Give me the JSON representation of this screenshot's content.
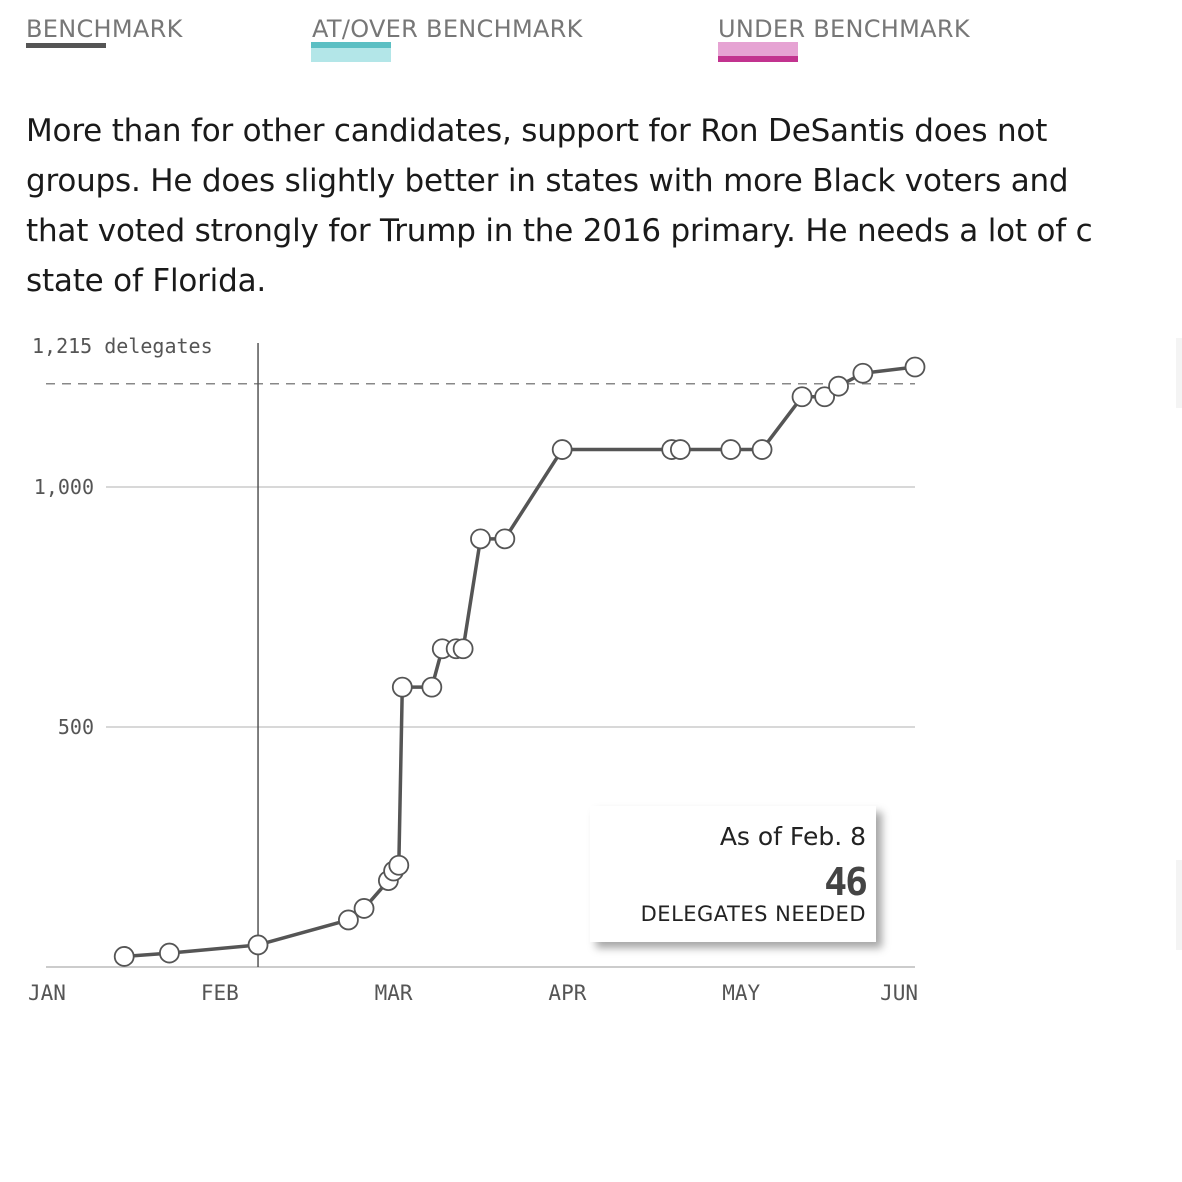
{
  "legend": {
    "benchmark": {
      "label": "BENCHMARK",
      "color": "#555555"
    },
    "over": {
      "label": "AT/OVER BENCHMARK",
      "color_light": "#b3e6e8",
      "color_dark": "#5bbfc3"
    },
    "under": {
      "label": "UNDER BENCHMARK",
      "color_light": "#e6a3d3",
      "color_dark": "#c2338f"
    }
  },
  "description": [
    "More than for other candidates, support for Ron DeSantis does not",
    "groups. He does slightly better in states with more Black voters and",
    "that voted strongly for Trump in the 2016 primary. He needs a lot of c",
    "state of Florida."
  ],
  "annotation": {
    "date": "As of Feb. 8",
    "value": "46",
    "label": "DELEGATES NEEDED"
  },
  "chart_data": {
    "type": "line",
    "x_unit": "month (Jan = 0)",
    "x_range": [
      0,
      5
    ],
    "ylim": [
      0,
      1300
    ],
    "yticks": [
      500,
      1000
    ],
    "ytick_labels": [
      "500",
      "1,000"
    ],
    "threshold": {
      "value": 1215,
      "label": "1,215 delegates"
    },
    "xticks": [
      0,
      1,
      2,
      3,
      4,
      5
    ],
    "xtick_labels": [
      "JAN",
      "FEB",
      "MAR",
      "APR",
      "MAY",
      "JUN"
    ],
    "current_marker_x": 1.22,
    "series": [
      {
        "color": "#555555",
        "x": [
          0.45,
          0.71,
          1.22,
          1.74,
          1.83,
          1.97,
          2.0,
          2.03,
          2.05,
          2.22,
          2.28,
          2.36,
          2.4,
          2.5,
          2.64,
          2.97,
          3.6,
          3.65,
          3.94,
          4.12,
          4.35,
          4.48,
          4.56,
          4.7,
          5.0
        ],
        "y": [
          22,
          29,
          46,
          98,
          122,
          180,
          200,
          212,
          583,
          583,
          663,
          663,
          663,
          892,
          892,
          1078,
          1078,
          1078,
          1078,
          1078,
          1188,
          1188,
          1210,
          1237,
          1250
        ]
      }
    ]
  }
}
